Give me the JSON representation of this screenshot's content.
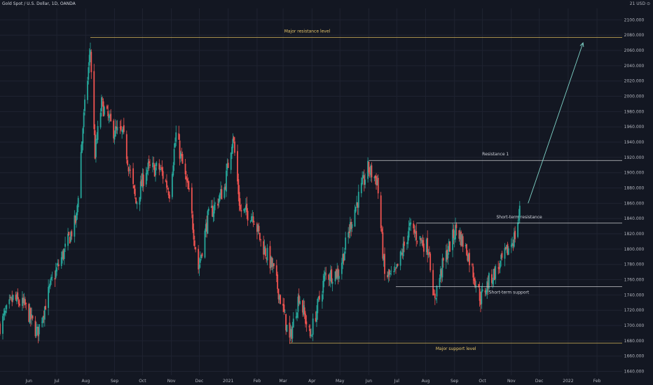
{
  "header": {
    "symbol_title": "Gold Spot / U.S. Dollar, 1D, OANDA",
    "price_unit": "USD",
    "axis_corner": "21 USD ⊙"
  },
  "chart_data": {
    "type": "candlestick",
    "title": "Gold Spot / U.S. Dollar, 1D, OANDA",
    "ylabel": "USD",
    "ylim": [
      1635,
      2115
    ],
    "y_ticks": [
      1640,
      1660,
      1680,
      1700,
      1720,
      1740,
      1760,
      1780,
      1800,
      1820,
      1840,
      1860,
      1880,
      1900,
      1920,
      1940,
      1960,
      1980,
      2000,
      2020,
      2040,
      2060,
      2080,
      2100
    ],
    "y_tick_labels": [
      "1640.000",
      "1660.000",
      "1680.000",
      "1700.000",
      "1720.000",
      "1740.000",
      "1760.000",
      "1780.000",
      "1800.000",
      "1820.000",
      "1840.000",
      "1860.000",
      "1880.000",
      "1900.000",
      "1920.000",
      "1940.000",
      "1960.000",
      "1980.000",
      "2000.000",
      "2020.000",
      "2040.000",
      "2060.000",
      "2080.000",
      "2100.000"
    ],
    "x_tick_labels": [
      "Jun",
      "Jul",
      "Aug",
      "Sep",
      "Oct",
      "Nov",
      "Dec",
      "2021",
      "Feb",
      "Mar",
      "Apr",
      "May",
      "Jun",
      "Jul",
      "Aug",
      "Sep",
      "Oct",
      "Nov",
      "Dec",
      "2022",
      "Feb"
    ],
    "x_range": [
      "2020-05-01",
      "2022-02-28"
    ],
    "x_ticks": [
      "2020-06-01",
      "2020-07-01",
      "2020-08-01",
      "2020-09-01",
      "2020-10-01",
      "2020-11-01",
      "2020-12-01",
      "2021-01-01",
      "2021-02-01",
      "2021-03-01",
      "2021-04-01",
      "2021-05-01",
      "2021-06-01",
      "2021-07-01",
      "2021-08-01",
      "2021-09-01",
      "2021-10-01",
      "2021-11-01",
      "2021-12-01",
      "2022-01-01",
      "2022-02-01"
    ],
    "grid": true,
    "colors": {
      "up": "#26a69a",
      "down": "#ef5350",
      "background": "#131722",
      "grid": "#1f2331",
      "text": "#b2b5be"
    },
    "price_path": [
      [
        "2020-05-01",
        1700
      ],
      [
        "2020-05-15",
        1735
      ],
      [
        "2020-05-28",
        1725
      ],
      [
        "2020-06-10",
        1690
      ],
      [
        "2020-06-25",
        1755
      ],
      [
        "2020-07-10",
        1800
      ],
      [
        "2020-07-22",
        1840
      ],
      [
        "2020-07-29",
        1960
      ],
      [
        "2020-08-06",
        2062
      ],
      [
        "2020-08-11",
        1925
      ],
      [
        "2020-08-18",
        1990
      ],
      [
        "2020-08-31",
        1955
      ],
      [
        "2020-09-10",
        1950
      ],
      [
        "2020-09-24",
        1860
      ],
      [
        "2020-10-05",
        1905
      ],
      [
        "2020-10-20",
        1905
      ],
      [
        "2020-10-30",
        1875
      ],
      [
        "2020-11-06",
        1950
      ],
      [
        "2020-11-20",
        1870
      ],
      [
        "2020-11-30",
        1775
      ],
      [
        "2020-12-10",
        1840
      ],
      [
        "2020-12-28",
        1880
      ],
      [
        "2021-01-06",
        1950
      ],
      [
        "2021-01-14",
        1850
      ],
      [
        "2021-01-28",
        1845
      ],
      [
        "2021-02-05",
        1810
      ],
      [
        "2021-02-18",
        1775
      ],
      [
        "2021-03-01",
        1720
      ],
      [
        "2021-03-08",
        1680
      ],
      [
        "2021-03-18",
        1740
      ],
      [
        "2021-03-30",
        1685
      ],
      [
        "2021-04-15",
        1765
      ],
      [
        "2021-04-30",
        1770
      ],
      [
        "2021-05-15",
        1845
      ],
      [
        "2021-05-31",
        1905
      ],
      [
        "2021-06-10",
        1890
      ],
      [
        "2021-06-18",
        1765
      ],
      [
        "2021-06-29",
        1765
      ],
      [
        "2021-07-15",
        1828
      ],
      [
        "2021-07-28",
        1810
      ],
      [
        "2021-08-05",
        1800
      ],
      [
        "2021-08-09",
        1730
      ],
      [
        "2021-08-20",
        1782
      ],
      [
        "2021-09-03",
        1828
      ],
      [
        "2021-09-15",
        1795
      ],
      [
        "2021-09-29",
        1735
      ],
      [
        "2021-10-08",
        1758
      ],
      [
        "2021-10-21",
        1782
      ],
      [
        "2021-10-28",
        1798
      ],
      [
        "2021-11-05",
        1818
      ],
      [
        "2021-11-10",
        1850
      ]
    ],
    "annotations": [
      {
        "label": "Major resistance level",
        "y": 2077,
        "x_start": "2020-08-06",
        "x_end": "2022-02-28",
        "color": "#d4b45a"
      },
      {
        "label": "Resistance 1",
        "y": 1916,
        "x_start": "2021-06-01",
        "x_end": "2022-02-28",
        "color": "#c8c9cc"
      },
      {
        "label": "Short-term resistance",
        "y": 1834,
        "x_start": "2021-07-22",
        "x_end": "2022-02-28",
        "color": "#c8c9cc"
      },
      {
        "label": "Short-term support",
        "y": 1751,
        "x_start": "2021-06-30",
        "x_end": "2022-02-28",
        "color": "#c8c9cc"
      },
      {
        "label": "Major support level",
        "y": 1677,
        "x_start": "2021-03-08",
        "x_end": "2022-02-28",
        "color": "#d4b45a"
      }
    ],
    "projection_arrow": {
      "from": [
        "2021-11-19",
        1860
      ],
      "to": [
        "2022-01-17",
        2070
      ],
      "color": "#7fd3c7"
    }
  }
}
